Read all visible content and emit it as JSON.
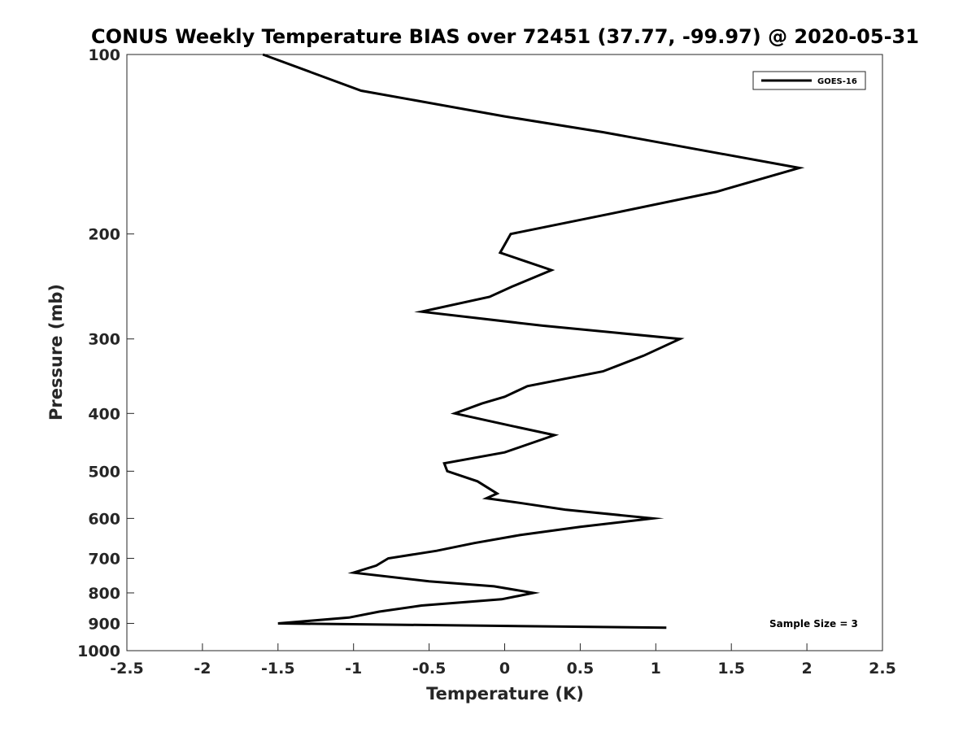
{
  "chart_data": {
    "type": "line",
    "title": "CONUS Weekly Temperature BIAS over 72451 (37.77, -99.97) @ 2020-05-31",
    "xlabel": "Temperature (K)",
    "ylabel": "Pressure (mb)",
    "xlim": [
      -2.5,
      2.5
    ],
    "ylim": [
      1000,
      100
    ],
    "yscale": "log",
    "y_reversed": true,
    "grid": false,
    "legend": "top-right",
    "x_ticks": [
      "-2.5",
      "-2",
      "-1.5",
      "-1",
      "-0.5",
      "0",
      "0.5",
      "1",
      "1.5",
      "2",
      "2.5"
    ],
    "y_ticks": [
      "100",
      "200",
      "300",
      "400",
      "500",
      "600",
      "700",
      "800",
      "900",
      "1000"
    ],
    "annotations": [
      {
        "text": "Sample Size = 3",
        "position": "bottom-right"
      }
    ],
    "series": [
      {
        "name": "GOES-16",
        "color": "#000000",
        "points": [
          [
            -1.6,
            100
          ],
          [
            -0.95,
            115
          ],
          [
            0.0,
            127
          ],
          [
            0.65,
            135
          ],
          [
            1.95,
            155
          ],
          [
            1.4,
            170
          ],
          [
            0.7,
            185
          ],
          [
            0.04,
            200
          ],
          [
            -0.03,
            215
          ],
          [
            0.31,
            230
          ],
          [
            0.05,
            245
          ],
          [
            -0.1,
            255
          ],
          [
            -0.55,
            270
          ],
          [
            0.25,
            285
          ],
          [
            1.16,
            300
          ],
          [
            0.92,
            320
          ],
          [
            0.65,
            340
          ],
          [
            0.15,
            360
          ],
          [
            0.0,
            375
          ],
          [
            -0.15,
            385
          ],
          [
            -0.33,
            400
          ],
          [
            0.05,
            420
          ],
          [
            0.33,
            435
          ],
          [
            0.0,
            465
          ],
          [
            -0.4,
            485
          ],
          [
            -0.38,
            500
          ],
          [
            -0.18,
            520
          ],
          [
            -0.05,
            545
          ],
          [
            -0.12,
            555
          ],
          [
            0.1,
            565
          ],
          [
            0.4,
            580
          ],
          [
            0.98,
            600
          ],
          [
            0.5,
            620
          ],
          [
            0.1,
            640
          ],
          [
            -0.2,
            660
          ],
          [
            -0.45,
            680
          ],
          [
            -0.77,
            700
          ],
          [
            -0.85,
            720
          ],
          [
            -1.0,
            740
          ],
          [
            -0.5,
            765
          ],
          [
            -0.07,
            780
          ],
          [
            0.19,
            800
          ],
          [
            -0.02,
            820
          ],
          [
            -0.55,
            840
          ],
          [
            -0.83,
            860
          ],
          [
            -1.03,
            880
          ],
          [
            -1.5,
            900
          ],
          [
            1.07,
            915
          ]
        ]
      }
    ]
  }
}
